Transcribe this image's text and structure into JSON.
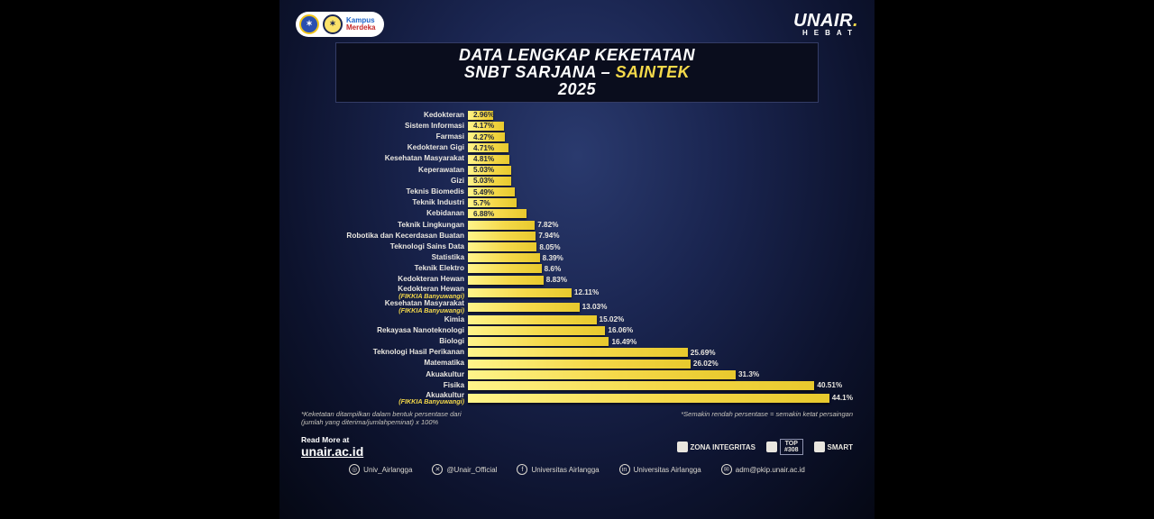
{
  "header": {
    "kampus1": "Kampus",
    "kampus2": "Merdeka",
    "brand": "UNAIR",
    "brand_sub": "HEBAT"
  },
  "title": {
    "l1": "DATA LENGKAP KEKETATAN",
    "l2a": "SNBT SARJANA – ",
    "l2b": "SAINTEK",
    "l3": "2025"
  },
  "chart": {
    "type": "horizontal-bar",
    "max_value": 45,
    "bar_color": "#f5d94a",
    "value_suffix": "%",
    "label_fontsize": 8.2,
    "value_fontsize": 8.2,
    "background_color": "#1a2550",
    "items": [
      {
        "label": "Kedokteran",
        "value": 2.96,
        "value_pos": "inside"
      },
      {
        "label": "Sistem Informasi",
        "value": 4.17,
        "value_pos": "inside"
      },
      {
        "label": "Farmasi",
        "value": 4.27,
        "value_pos": "inside"
      },
      {
        "label": "Kedokteran Gigi",
        "value": 4.71,
        "value_pos": "inside"
      },
      {
        "label": "Kesehatan Masyarakat",
        "value": 4.81,
        "value_pos": "inside"
      },
      {
        "label": "Keperawatan",
        "value": 5.03,
        "value_pos": "inside"
      },
      {
        "label": "Gizi",
        "value": 5.03,
        "value_pos": "inside"
      },
      {
        "label": "Teknis Biomedis",
        "value": 5.49,
        "value_pos": "inside"
      },
      {
        "label": "Teknik Industri",
        "value": 5.7,
        "value_pos": "inside"
      },
      {
        "label": "Kebidanan",
        "value": 6.88,
        "value_pos": "inside"
      },
      {
        "label": "Teknik Lingkungan",
        "value": 7.82,
        "value_pos": "outside"
      },
      {
        "label": "Robotika dan Kecerdasan Buatan",
        "value": 7.94,
        "value_pos": "outside"
      },
      {
        "label": "Teknologi Sains Data",
        "value": 8.05,
        "value_pos": "outside"
      },
      {
        "label": "Statistika",
        "value": 8.39,
        "value_pos": "outside"
      },
      {
        "label": "Teknik Elektro",
        "value": 8.6,
        "value_pos": "outside"
      },
      {
        "label": "Kedokteran Hewan",
        "value": 8.83,
        "value_pos": "outside"
      },
      {
        "label": "Kedokteran Hewan",
        "sublabel": "(FIKKIA Banyuwangi)",
        "sub_color": "ylw",
        "value": 12.11,
        "value_pos": "outside"
      },
      {
        "label": "Kesehatan Masyarakat",
        "sublabel": "(FIKKIA Banyuwangi)",
        "sub_color": "ylw",
        "value": 13.03,
        "value_pos": "outside"
      },
      {
        "label": "Kimia",
        "value": 15.02,
        "value_pos": "outside"
      },
      {
        "label": "Rekayasa Nanoteknologi",
        "value": 16.06,
        "value_pos": "outside"
      },
      {
        "label": "Biologi",
        "value": 16.49,
        "value_pos": "outside"
      },
      {
        "label": "Teknologi Hasil Perikanan",
        "value": 25.69,
        "value_pos": "outside"
      },
      {
        "label": "Matematika",
        "value": 26.02,
        "value_pos": "outside"
      },
      {
        "label": "Akuakultur",
        "value": 31.3,
        "value_pos": "outside"
      },
      {
        "label": "Fisika",
        "value": 40.51,
        "value_pos": "outside"
      },
      {
        "label": "Akuakultur",
        "sublabel": "(FIKKIA Banyuwangi)",
        "sub_color": "ylw",
        "value": 44.1,
        "value_pos": "outside"
      }
    ]
  },
  "notes": {
    "left": "*Keketatan ditampilkan dalam bentuk persentase dari\n(jumlah yang diterima/jumlahpeminat) x 100%",
    "right": "*Semakin rendah persentase = semakin ketat persaingan"
  },
  "readmore": {
    "label": "Read More at",
    "url": "unair.ac.id"
  },
  "badges": {
    "b1": "ZONA INTEGRITAS",
    "b2_a": "TOP",
    "b2_b": "#308",
    "b3": "SMART"
  },
  "socials": {
    "ig": "Univ_Airlangga",
    "x": "@Unair_Official",
    "fb": "Universitas Airlangga",
    "in": "Universitas Airlangga",
    "mail": "adm@pkip.unair.ac.id"
  }
}
